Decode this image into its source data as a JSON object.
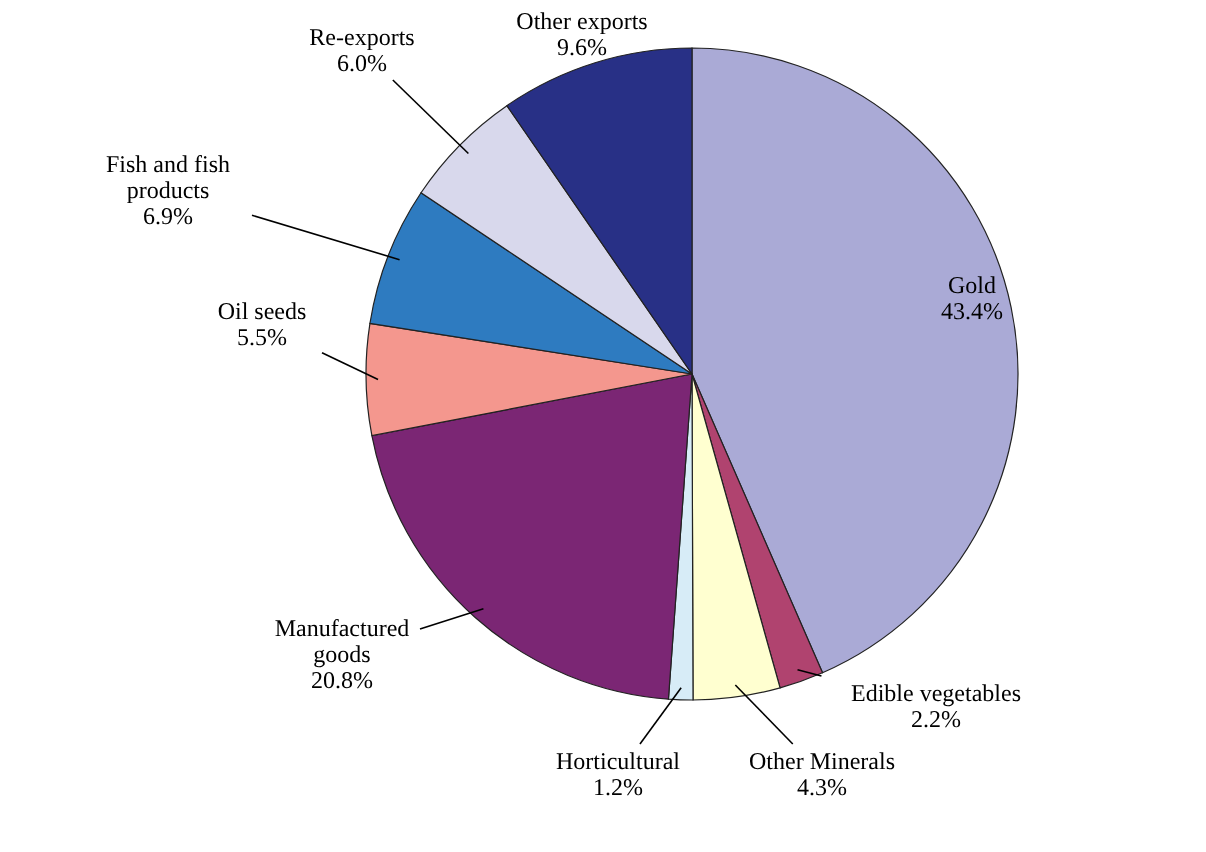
{
  "chart_data": {
    "type": "pie",
    "categories": [
      "Gold",
      "Edible vegetables",
      "Other Minerals",
      "Horticultural",
      "Manufactured goods",
      "Oil seeds",
      "Fish and fish products",
      "Re-exports",
      "Other exports"
    ],
    "values": [
      43.4,
      2.2,
      4.3,
      1.2,
      20.8,
      5.5,
      6.9,
      6.0,
      9.6
    ],
    "value_labels": [
      "43.4%",
      "2.2%",
      "4.3%",
      "1.2%",
      "20.8%",
      "5.5%",
      "6.9%",
      "6.0%",
      "9.6%"
    ],
    "colors": [
      "#aaaad6",
      "#b0436f",
      "#ffffd0",
      "#d7ecf7",
      "#7b2674",
      "#f4978e",
      "#2e7bc0",
      "#d8d8ec",
      "#283086"
    ]
  }
}
